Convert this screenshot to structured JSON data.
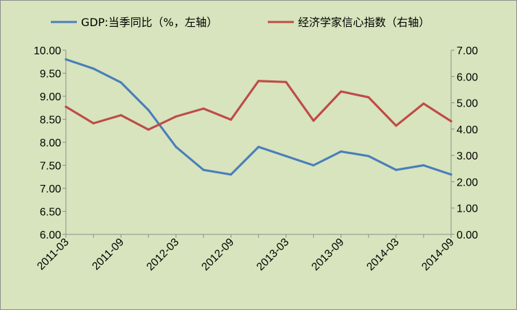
{
  "chart_data": {
    "type": "line",
    "title": "",
    "xlabel": "",
    "ylabel": "",
    "x": [
      "2011-03",
      "2011-06",
      "2011-09",
      "2011-12",
      "2012-03",
      "2012-06",
      "2012-09",
      "2012-12",
      "2013-03",
      "2013-06",
      "2013-09",
      "2013-12",
      "2014-03",
      "2014-06",
      "2014-09"
    ],
    "x_tick_labels": [
      "2011-03",
      "2011-09",
      "2012-03",
      "2012-09",
      "2013-03",
      "2013-09",
      "2014-03",
      "2014-09"
    ],
    "y_left": {
      "ylim": [
        6.0,
        10.0
      ],
      "ticks": [
        "6.00",
        "6.50",
        "7.00",
        "7.50",
        "8.00",
        "8.50",
        "9.00",
        "9.50",
        "10.00"
      ]
    },
    "y_right": {
      "ylim": [
        0.0,
        7.0
      ],
      "ticks": [
        "0.00",
        "1.00",
        "2.00",
        "3.00",
        "4.00",
        "5.00",
        "6.00",
        "7.00"
      ]
    },
    "series": [
      {
        "name": "GDP:当季同比（%，左轴）",
        "axis": "left",
        "color": "#4a7ebb",
        "values": [
          9.8,
          9.6,
          9.3,
          8.7,
          7.9,
          7.4,
          7.3,
          7.9,
          7.7,
          7.5,
          7.8,
          7.7,
          7.4,
          7.5,
          7.3
        ]
      },
      {
        "name": "经济学家信心指数（右轴）",
        "axis": "right",
        "color": "#be4b48",
        "values": [
          4.85,
          4.22,
          4.53,
          3.98,
          4.48,
          4.78,
          4.36,
          5.83,
          5.79,
          4.32,
          5.43,
          5.21,
          4.13,
          4.97,
          4.3
        ]
      }
    ],
    "grid": false,
    "legend": "top"
  }
}
